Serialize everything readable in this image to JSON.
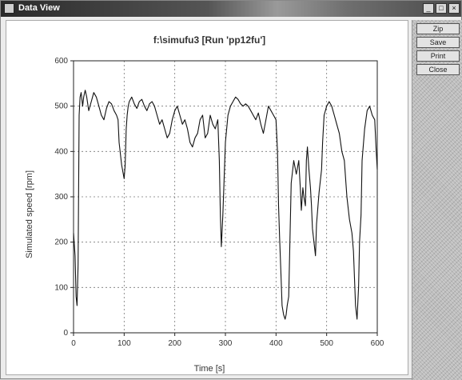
{
  "window": {
    "title": "Data View",
    "controls": {
      "minimize": "_",
      "maximize": "□",
      "close": "×"
    }
  },
  "side_buttons": [
    {
      "label": "Zip"
    },
    {
      "label": "Save"
    },
    {
      "label": "Print"
    },
    {
      "label": "Close"
    }
  ],
  "icons": [
    "app-icon",
    "minimize-icon",
    "maximize-icon",
    "close-icon"
  ],
  "chart_data": {
    "type": "line",
    "title": "f:\\simufu3 [Run 'pp12fu']",
    "xlabel": "Time [s]",
    "ylabel": "Simulated speed [rpm]",
    "xlim": [
      0,
      600
    ],
    "ylim": [
      0,
      600
    ],
    "x_ticks": [
      "0",
      "100",
      "200",
      "300",
      "400",
      "500",
      "600"
    ],
    "y_ticks": [
      "0",
      "100",
      "200",
      "300",
      "400",
      "500",
      "600"
    ],
    "grid": true,
    "line_color": "#111111",
    "series": [
      {
        "x": [
          0,
          3,
          5,
          7,
          9,
          11,
          13,
          15,
          18,
          20,
          23,
          26,
          30,
          35,
          40,
          45,
          50,
          55,
          60,
          65,
          70,
          75,
          80,
          85,
          88,
          90,
          95,
          100,
          102,
          104,
          106,
          108,
          110,
          115,
          120,
          125,
          130,
          135,
          140,
          145,
          150,
          155,
          160,
          165,
          170,
          175,
          180,
          185,
          190,
          195,
          200,
          205,
          210,
          215,
          220,
          225,
          230,
          235,
          240,
          245,
          250,
          255,
          260,
          265,
          270,
          275,
          280,
          285,
          288,
          290,
          292,
          295,
          300,
          305,
          310,
          315,
          320,
          325,
          330,
          335,
          340,
          345,
          350,
          355,
          360,
          365,
          370,
          375,
          380,
          385,
          390,
          395,
          400,
          403,
          405,
          407,
          410,
          412,
          415,
          418,
          420,
          422,
          425,
          430,
          435,
          440,
          445,
          448,
          450,
          453,
          455,
          458,
          460,
          462,
          465,
          468,
          470,
          472,
          475,
          478,
          480,
          485,
          490,
          492,
          495,
          500,
          505,
          510,
          515,
          520,
          525,
          530,
          535,
          540,
          545,
          550,
          553,
          555,
          557,
          560,
          563,
          565,
          568,
          570,
          575,
          580,
          585,
          590,
          595,
          598,
          600
        ],
        "y": [
          220,
          170,
          80,
          60,
          150,
          480,
          520,
          530,
          500,
          520,
          535,
          520,
          490,
          510,
          530,
          520,
          500,
          480,
          470,
          495,
          510,
          505,
          490,
          480,
          470,
          420,
          370,
          340,
          370,
          450,
          480,
          500,
          510,
          520,
          505,
          495,
          510,
          515,
          500,
          490,
          505,
          510,
          500,
          480,
          460,
          470,
          450,
          430,
          440,
          470,
          490,
          500,
          480,
          460,
          470,
          450,
          420,
          410,
          430,
          440,
          470,
          480,
          430,
          440,
          480,
          460,
          450,
          470,
          380,
          260,
          190,
          260,
          420,
          480,
          500,
          510,
          520,
          515,
          505,
          500,
          505,
          500,
          490,
          480,
          470,
          485,
          460,
          440,
          470,
          500,
          490,
          480,
          470,
          400,
          280,
          210,
          120,
          60,
          40,
          30,
          40,
          60,
          80,
          330,
          380,
          350,
          380,
          320,
          270,
          320,
          300,
          280,
          380,
          410,
          360,
          320,
          280,
          230,
          200,
          170,
          240,
          310,
          360,
          420,
          480,
          500,
          510,
          500,
          480,
          460,
          440,
          400,
          380,
          300,
          250,
          220,
          180,
          120,
          60,
          30,
          100,
          200,
          260,
          380,
          450,
          490,
          500,
          480,
          470,
          400,
          360
        ]
      }
    ]
  }
}
